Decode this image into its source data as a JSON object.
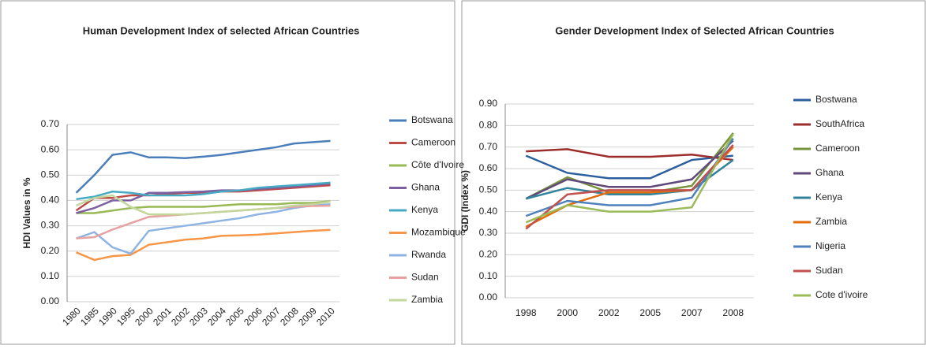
{
  "chart_data": [
    {
      "type": "line",
      "title": "Human Development Index of selected African Countries",
      "y_label": "HDI Values in %",
      "categories": [
        "1980",
        "1985",
        "1990",
        "1995",
        "2000",
        "2001",
        "2002",
        "2003",
        "2004",
        "2005",
        "2006",
        "2007",
        "2008",
        "2009",
        "2010"
      ],
      "ylim": [
        0,
        0.7
      ],
      "yticks": [
        {
          "value": 0,
          "label": "0.00"
        },
        {
          "value": 0.1,
          "label": "0.10"
        },
        {
          "value": 0.2,
          "label": "0.20"
        },
        {
          "value": 0.3,
          "label": "0.30"
        },
        {
          "value": 0.4,
          "label": "0.40"
        },
        {
          "value": 0.5,
          "label": "0.50"
        },
        {
          "value": 0.6,
          "label": "0.60"
        },
        {
          "value": 0.7,
          "label": "0.70"
        }
      ],
      "grid": true,
      "series": [
        {
          "name": "Botswana",
          "color": "#4a7ebb",
          "values": [
            0.43,
            0.5,
            0.58,
            0.59,
            0.57,
            0.57,
            0.567,
            0.573,
            0.58,
            0.59,
            0.6,
            0.61,
            0.625,
            0.63,
            0.635
          ]
        },
        {
          "name": "Cameroon",
          "color": "#be4b48",
          "values": [
            0.36,
            0.41,
            0.41,
            0.42,
            0.42,
            0.425,
            0.43,
            0.43,
            0.435,
            0.435,
            0.44,
            0.445,
            0.45,
            0.455,
            0.46
          ]
        },
        {
          "name": "Côte d'Ivoire",
          "color": "#98b954",
          "values": [
            0.35,
            0.35,
            0.36,
            0.37,
            0.375,
            0.375,
            0.375,
            0.375,
            0.38,
            0.385,
            0.385,
            0.385,
            0.39,
            0.39,
            0.397
          ]
        },
        {
          "name": "Ghana",
          "color": "#7d60a0",
          "values": [
            0.35,
            0.37,
            0.4,
            0.4,
            0.43,
            0.43,
            0.433,
            0.435,
            0.44,
            0.44,
            0.445,
            0.45,
            0.455,
            0.46,
            0.467
          ]
        },
        {
          "name": "Kenya",
          "color": "#46aac5",
          "values": [
            0.405,
            0.415,
            0.435,
            0.43,
            0.42,
            0.42,
            0.42,
            0.425,
            0.435,
            0.44,
            0.45,
            0.455,
            0.46,
            0.465,
            0.47
          ]
        },
        {
          "name": "Mozambique",
          "color": "#f79646",
          "values": [
            0.195,
            0.165,
            0.18,
            0.185,
            0.225,
            0.235,
            0.245,
            0.25,
            0.26,
            0.262,
            0.265,
            0.27,
            0.275,
            0.28,
            0.284
          ]
        },
        {
          "name": "Rwanda",
          "color": "#8eb4e3",
          "values": [
            0.25,
            0.275,
            0.215,
            0.19,
            0.28,
            0.29,
            0.3,
            0.31,
            0.32,
            0.33,
            0.345,
            0.355,
            0.37,
            0.38,
            0.385
          ]
        },
        {
          "name": "Sudan",
          "color": "#e6a1a1",
          "values": [
            0.25,
            0.255,
            0.285,
            0.31,
            0.335,
            0.34,
            0.345,
            0.35,
            0.355,
            0.36,
            0.365,
            0.37,
            0.375,
            0.378,
            0.379
          ]
        },
        {
          "name": "Zambia",
          "color": "#c3d69b",
          "values": [
            0.38,
            0.41,
            0.42,
            0.375,
            0.345,
            0.345,
            0.345,
            0.35,
            0.355,
            0.36,
            0.365,
            0.37,
            0.38,
            0.385,
            0.395
          ]
        }
      ]
    },
    {
      "type": "line",
      "title": "Gender Development Index of Selected African Countries",
      "y_label": "GDI (Index %)",
      "categories": [
        "1998",
        "2000",
        "2002",
        "2005",
        "2007",
        "2008"
      ],
      "ylim": [
        0,
        0.9
      ],
      "yticks": [
        {
          "value": 0,
          "label": "0.00"
        },
        {
          "value": 0.1,
          "label": "0.10"
        },
        {
          "value": 0.2,
          "label": "0.20"
        },
        {
          "value": 0.3,
          "label": "0.30"
        },
        {
          "value": 0.4,
          "label": "0.40"
        },
        {
          "value": 0.5,
          "label": "0.50"
        },
        {
          "value": 0.6,
          "label": "0.60"
        },
        {
          "value": 0.7,
          "label": "0.70"
        },
        {
          "value": 0.8,
          "label": "0.80"
        },
        {
          "value": 0.9,
          "label": "0.90"
        }
      ],
      "grid": true,
      "series": [
        {
          "name": "Bostwana",
          "color": "#2c5f9e",
          "values": [
            0.66,
            0.58,
            0.555,
            0.555,
            0.64,
            0.66
          ]
        },
        {
          "name": "SouthAfrica",
          "color": "#9b2d2a",
          "values": [
            0.68,
            0.69,
            0.655,
            0.655,
            0.665,
            0.64
          ]
        },
        {
          "name": "Cameroon",
          "color": "#77933c",
          "values": [
            0.46,
            0.56,
            0.49,
            0.49,
            0.52,
            0.765
          ]
        },
        {
          "name": "Ghana",
          "color": "#5f497a",
          "values": [
            0.46,
            0.55,
            0.515,
            0.515,
            0.55,
            0.73
          ]
        },
        {
          "name": "Kenya",
          "color": "#31849b",
          "values": [
            0.46,
            0.51,
            0.48,
            0.48,
            0.5,
            0.64
          ]
        },
        {
          "name": "Zambia",
          "color": "#e46c0a",
          "values": [
            0.33,
            0.43,
            0.49,
            0.49,
            0.5,
            0.7
          ]
        },
        {
          "name": "Nigeria",
          "color": "#4f81bd",
          "values": [
            0.38,
            0.45,
            0.43,
            0.43,
            0.465,
            0.74
          ]
        },
        {
          "name": "Sudan",
          "color": "#c0504d",
          "values": [
            0.32,
            0.48,
            0.5,
            0.5,
            0.5,
            0.71
          ]
        },
        {
          "name": "Cote d'ivoire",
          "color": "#9bbb59",
          "values": [
            0.35,
            0.43,
            0.4,
            0.4,
            0.42,
            0.76
          ]
        }
      ]
    }
  ]
}
